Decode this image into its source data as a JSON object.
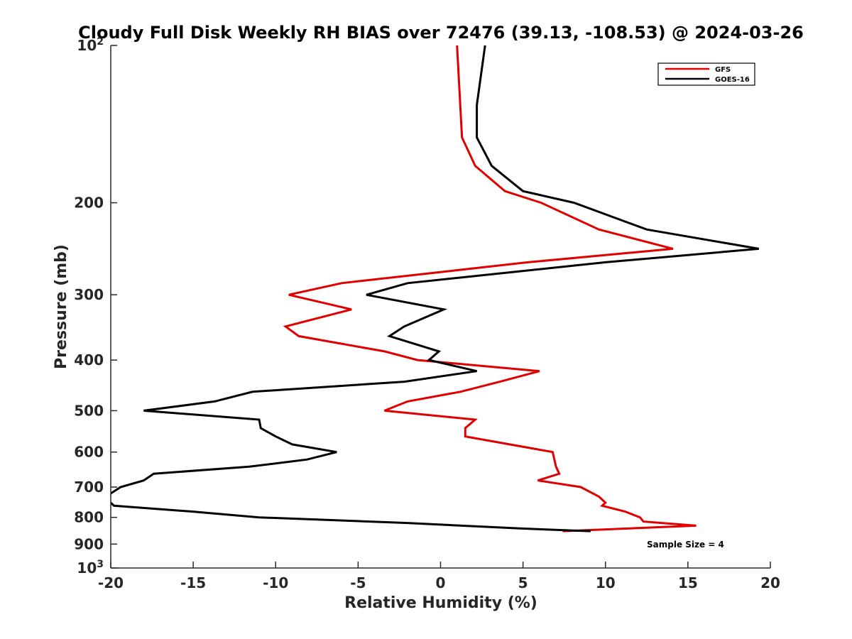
{
  "chart_data": {
    "type": "line",
    "title": "Cloudy Full Disk Weekly RH BIAS over 72476 (39.13, -108.53) @ 2024-03-26",
    "xlabel": "Relative Humidity (%)",
    "ylabel": "Pressure (mb)",
    "xlim": [
      -20,
      20
    ],
    "ylim": [
      100,
      1000
    ],
    "y_scale": "log",
    "y_reversed": true,
    "grid": false,
    "legend_position": "top-right",
    "x_ticks": [
      {
        "value": -20,
        "label": "-20"
      },
      {
        "value": -15,
        "label": "-15"
      },
      {
        "value": -10,
        "label": "-10"
      },
      {
        "value": -5,
        "label": "-5"
      },
      {
        "value": 0,
        "label": "0"
      },
      {
        "value": 5,
        "label": "5"
      },
      {
        "value": 10,
        "label": "10"
      },
      {
        "value": 15,
        "label": "15"
      },
      {
        "value": 20,
        "label": "20"
      }
    ],
    "y_ticks": [
      {
        "value": 100,
        "label": "10",
        "sup": "2"
      },
      {
        "value": 200,
        "label": "200"
      },
      {
        "value": 300,
        "label": "300"
      },
      {
        "value": 400,
        "label": "400"
      },
      {
        "value": 500,
        "label": "500"
      },
      {
        "value": 600,
        "label": "600"
      },
      {
        "value": 700,
        "label": "700"
      },
      {
        "value": 800,
        "label": "800"
      },
      {
        "value": 900,
        "label": "900"
      },
      {
        "value": 1000,
        "label": "10",
        "sup": "3"
      }
    ],
    "series": [
      {
        "name": "GFS",
        "color": "#e00000",
        "points": [
          [
            1.0,
            100
          ],
          [
            1.3,
            150
          ],
          [
            2.1,
            170
          ],
          [
            3.9,
            190
          ],
          [
            6.1,
            200
          ],
          [
            9.6,
            225
          ],
          [
            14.1,
            245
          ],
          [
            5.3,
            260
          ],
          [
            -6.0,
            285
          ],
          [
            -9.2,
            300
          ],
          [
            -5.4,
            320
          ],
          [
            -9.4,
            345
          ],
          [
            -8.6,
            360
          ],
          [
            -3.4,
            385
          ],
          [
            -1.4,
            400
          ],
          [
            6.0,
            420
          ],
          [
            3.6,
            440
          ],
          [
            1.2,
            460
          ],
          [
            -2.0,
            480
          ],
          [
            -3.4,
            500
          ],
          [
            2.1,
            520
          ],
          [
            1.5,
            540
          ],
          [
            1.5,
            560
          ],
          [
            6.8,
            600
          ],
          [
            7.0,
            640
          ],
          [
            7.2,
            660
          ],
          [
            5.9,
            680
          ],
          [
            8.5,
            700
          ],
          [
            9.6,
            730
          ],
          [
            10.0,
            750
          ],
          [
            9.8,
            760
          ],
          [
            11.2,
            780
          ],
          [
            12.1,
            800
          ],
          [
            12.3,
            815
          ],
          [
            15.5,
            830
          ],
          [
            7.4,
            850
          ]
        ]
      },
      {
        "name": "GOES-16",
        "color": "#000000",
        "points": [
          [
            2.7,
            100
          ],
          [
            2.2,
            130
          ],
          [
            2.2,
            150
          ],
          [
            3.1,
            170
          ],
          [
            5.0,
            190
          ],
          [
            8.1,
            200
          ],
          [
            12.5,
            225
          ],
          [
            19.3,
            245
          ],
          [
            10.0,
            260
          ],
          [
            -2.0,
            285
          ],
          [
            -4.5,
            300
          ],
          [
            0.2,
            320
          ],
          [
            -2.2,
            345
          ],
          [
            -3.1,
            360
          ],
          [
            -0.1,
            385
          ],
          [
            -0.7,
            400
          ],
          [
            2.2,
            420
          ],
          [
            -2.2,
            440
          ],
          [
            -11.4,
            460
          ],
          [
            -13.7,
            480
          ],
          [
            -18.0,
            500
          ],
          [
            -11.0,
            520
          ],
          [
            -10.9,
            540
          ],
          [
            -10.0,
            560
          ],
          [
            -9.0,
            580
          ],
          [
            -6.3,
            600
          ],
          [
            -8.1,
            620
          ],
          [
            -11.6,
            640
          ],
          [
            -17.4,
            660
          ],
          [
            -18.0,
            680
          ],
          [
            -19.4,
            700
          ],
          [
            -20.0,
            720
          ],
          [
            -20.2,
            740
          ],
          [
            -19.8,
            760
          ],
          [
            -15.0,
            780
          ],
          [
            -11.0,
            800
          ],
          [
            -2.0,
            820
          ],
          [
            4.8,
            840
          ],
          [
            9.1,
            850
          ]
        ]
      }
    ],
    "annotation": "Sample Size = 4"
  }
}
